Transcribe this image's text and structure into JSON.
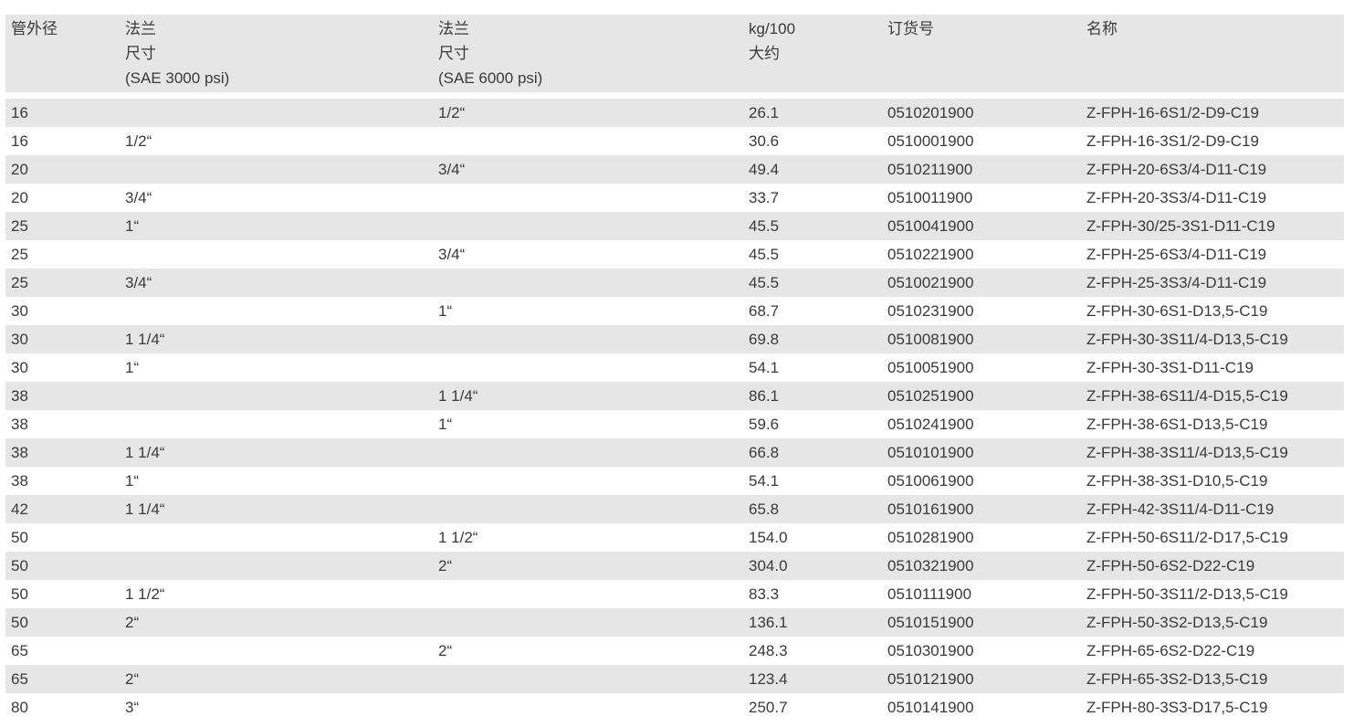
{
  "header": [
    "管外径",
    "法兰\n尺寸\n(SAE 3000 psi)",
    "法兰\n尺寸\n(SAE 6000 psi)",
    "kg/100\n大约",
    "订货号",
    "名称"
  ],
  "rows": [
    [
      "16",
      "",
      "1/2“",
      "26.1",
      "0510201900",
      "Z-FPH-16-6S1/2-D9-C19"
    ],
    [
      "16",
      "1/2“",
      "",
      "30.6",
      "0510001900",
      "Z-FPH-16-3S1/2-D9-C19"
    ],
    [
      "20",
      "",
      "3/4“",
      "49.4",
      "0510211900",
      "Z-FPH-20-6S3/4-D11-C19"
    ],
    [
      "20",
      "3/4“",
      "",
      "33.7",
      "0510011900",
      "Z-FPH-20-3S3/4-D11-C19"
    ],
    [
      "25",
      "1“",
      "",
      "45.5",
      "0510041900",
      "Z-FPH-30/25-3S1-D11-C19"
    ],
    [
      "25",
      "",
      "3/4“",
      "45.5",
      "0510221900",
      "Z-FPH-25-6S3/4-D11-C19"
    ],
    [
      "25",
      "3/4“",
      "",
      "45.5",
      "0510021900",
      "Z-FPH-25-3S3/4-D11-C19"
    ],
    [
      "30",
      "",
      "1“",
      "68.7",
      "0510231900",
      "Z-FPH-30-6S1-D13,5-C19"
    ],
    [
      "30",
      "1 1/4“",
      "",
      "69.8",
      "0510081900",
      "Z-FPH-30-3S11/4-D13,5-C19"
    ],
    [
      "30",
      "1“",
      "",
      "54.1",
      "0510051900",
      "Z-FPH-30-3S1-D11-C19"
    ],
    [
      "38",
      "",
      "1 1/4“",
      "86.1",
      "0510251900",
      "Z-FPH-38-6S11/4-D15,5-C19"
    ],
    [
      "38",
      "",
      "1“",
      "59.6",
      "0510241900",
      "Z-FPH-38-6S1-D13,5-C19"
    ],
    [
      "38",
      "1 1/4“",
      "",
      "66.8",
      "0510101900",
      "Z-FPH-38-3S11/4-D13,5-C19"
    ],
    [
      "38",
      "1“",
      "",
      "54.1",
      "0510061900",
      "Z-FPH-38-3S1-D10,5-C19"
    ],
    [
      "42",
      "1 1/4“",
      "",
      "65.8",
      "0510161900",
      "Z-FPH-42-3S11/4-D11-C19"
    ],
    [
      "50",
      "",
      "1 1/2“",
      "154.0",
      "0510281900",
      "Z-FPH-50-6S11/2-D17,5-C19"
    ],
    [
      "50",
      "",
      "2“",
      "304.0",
      "0510321900",
      "Z-FPH-50-6S2-D22-C19"
    ],
    [
      "50",
      "1 1/2“",
      "",
      "83.3",
      "0510111900",
      "Z-FPH-50-3S11/2-D13,5-C19"
    ],
    [
      "50",
      "2“",
      "",
      "136.1",
      "0510151900",
      "Z-FPH-50-3S2-D13,5-C19"
    ],
    [
      "65",
      "",
      "2“",
      "248.3",
      "0510301900",
      "Z-FPH-65-6S2-D22-C19"
    ],
    [
      "65",
      "2“",
      "",
      "123.4",
      "0510121900",
      "Z-FPH-65-3S2-D13,5-C19"
    ],
    [
      "80",
      "3“",
      "",
      "250.7",
      "0510141900",
      "Z-FPH-80-3S3-D17,5-C19"
    ]
  ]
}
